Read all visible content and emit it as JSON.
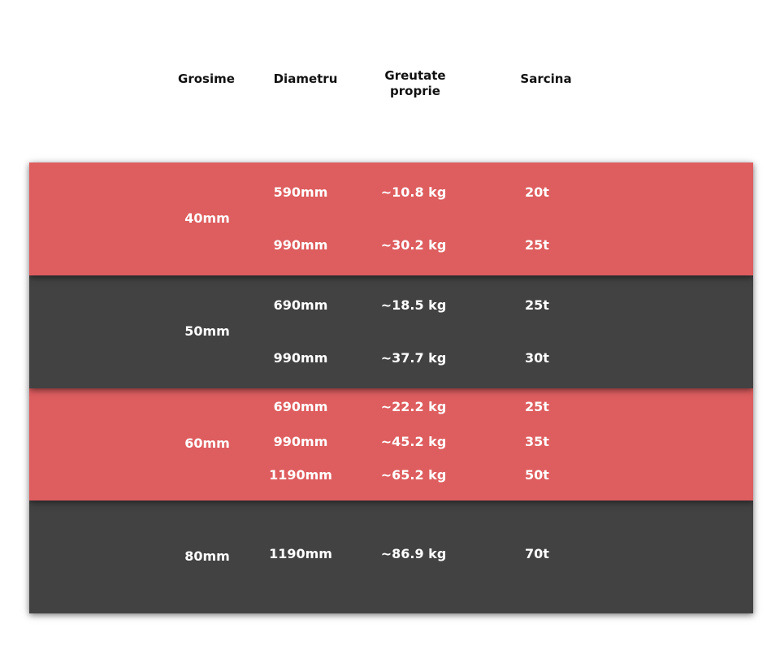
{
  "colors": {
    "red": "#de5d5f",
    "dark": "#424242"
  },
  "headers": {
    "thickness": "Grosime",
    "diameter": "Diametru",
    "weight": "Greutate proprie",
    "load": "Sarcina"
  },
  "groups": [
    {
      "thickness": "40mm",
      "rows": [
        {
          "diameter": "590mm",
          "weight": "~10.8 kg",
          "load": "20t"
        },
        {
          "diameter": "990mm",
          "weight": "~30.2 kg",
          "load": "25t"
        }
      ]
    },
    {
      "thickness": "50mm",
      "rows": [
        {
          "diameter": "690mm",
          "weight": "~18.5 kg",
          "load": "25t"
        },
        {
          "diameter": "990mm",
          "weight": "~37.7 kg",
          "load": "30t"
        }
      ]
    },
    {
      "thickness": "60mm",
      "rows": [
        {
          "diameter": "690mm",
          "weight": "~22.2 kg",
          "load": "25t"
        },
        {
          "diameter": "990mm",
          "weight": "~45.2 kg",
          "load": "35t"
        },
        {
          "diameter": "1190mm",
          "weight": "~65.2 kg",
          "load": "50t"
        }
      ]
    },
    {
      "thickness": "80mm",
      "rows": [
        {
          "diameter": "1190mm",
          "weight": "~86.9 kg",
          "load": "70t"
        }
      ]
    }
  ]
}
